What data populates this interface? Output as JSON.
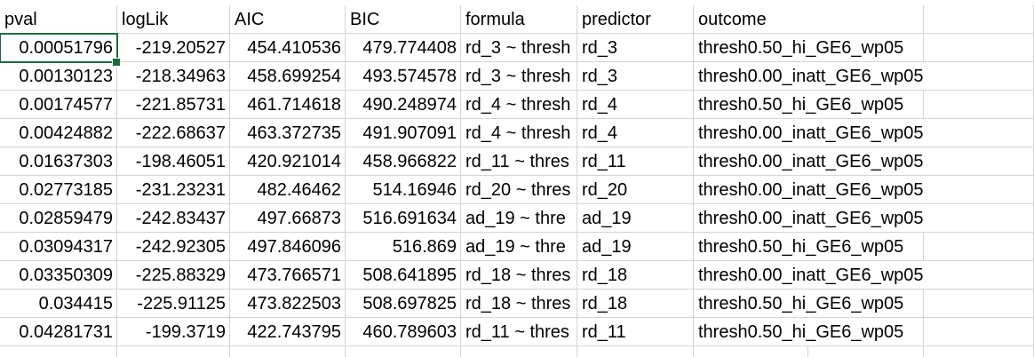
{
  "columns": [
    "pval",
    "logLik",
    "AIC",
    "BIC",
    "formula",
    "predictor",
    "outcome"
  ],
  "rows": [
    [
      "0.00051796",
      "-219.20527",
      "454.410536",
      "479.774408",
      "rd_3 ~ thresh",
      "rd_3",
      "thresh0.50_hi_GE6_wp05"
    ],
    [
      "0.00130123",
      "-218.34963",
      "458.699254",
      "493.574578",
      "rd_3 ~ thresh",
      "rd_3",
      "thresh0.00_inatt_GE6_wp05"
    ],
    [
      "0.00174577",
      "-221.85731",
      "461.714618",
      "490.248974",
      "rd_4 ~ thresh",
      "rd_4",
      "thresh0.50_hi_GE6_wp05"
    ],
    [
      "0.00424882",
      "-222.68637",
      "463.372735",
      "491.907091",
      "rd_4 ~ thresh",
      "rd_4",
      "thresh0.00_inatt_GE6_wp05"
    ],
    [
      "0.01637303",
      "-198.46051",
      "420.921014",
      "458.966822",
      "rd_11 ~ thres",
      "rd_11",
      "thresh0.00_inatt_GE6_wp05"
    ],
    [
      "0.02773185",
      "-231.23231",
      "482.46462",
      "514.16946",
      "rd_20 ~ thres",
      "rd_20",
      "thresh0.00_inatt_GE6_wp05"
    ],
    [
      "0.02859479",
      "-242.83437",
      "497.66873",
      "516.691634",
      "ad_19 ~ thre",
      "ad_19",
      "thresh0.00_inatt_GE6_wp05"
    ],
    [
      "0.03094317",
      "-242.92305",
      "497.846096",
      "516.869",
      "ad_19 ~ thre",
      "ad_19",
      "thresh0.50_hi_GE6_wp05"
    ],
    [
      "0.03350309",
      "-225.88329",
      "473.766571",
      "508.641895",
      "rd_18 ~ thres",
      "rd_18",
      "thresh0.00_inatt_GE6_wp05"
    ],
    [
      "0.034415",
      "-225.91125",
      "473.822503",
      "508.697825",
      "rd_18 ~ thres",
      "rd_18",
      "thresh0.50_hi_GE6_wp05"
    ],
    [
      "0.04281731",
      "-199.3719",
      "422.743795",
      "460.789603",
      "rd_11 ~ thres",
      "rd_11",
      "thresh0.50_hi_GE6_wp05"
    ]
  ],
  "selected_cell": "row 1, column pval"
}
